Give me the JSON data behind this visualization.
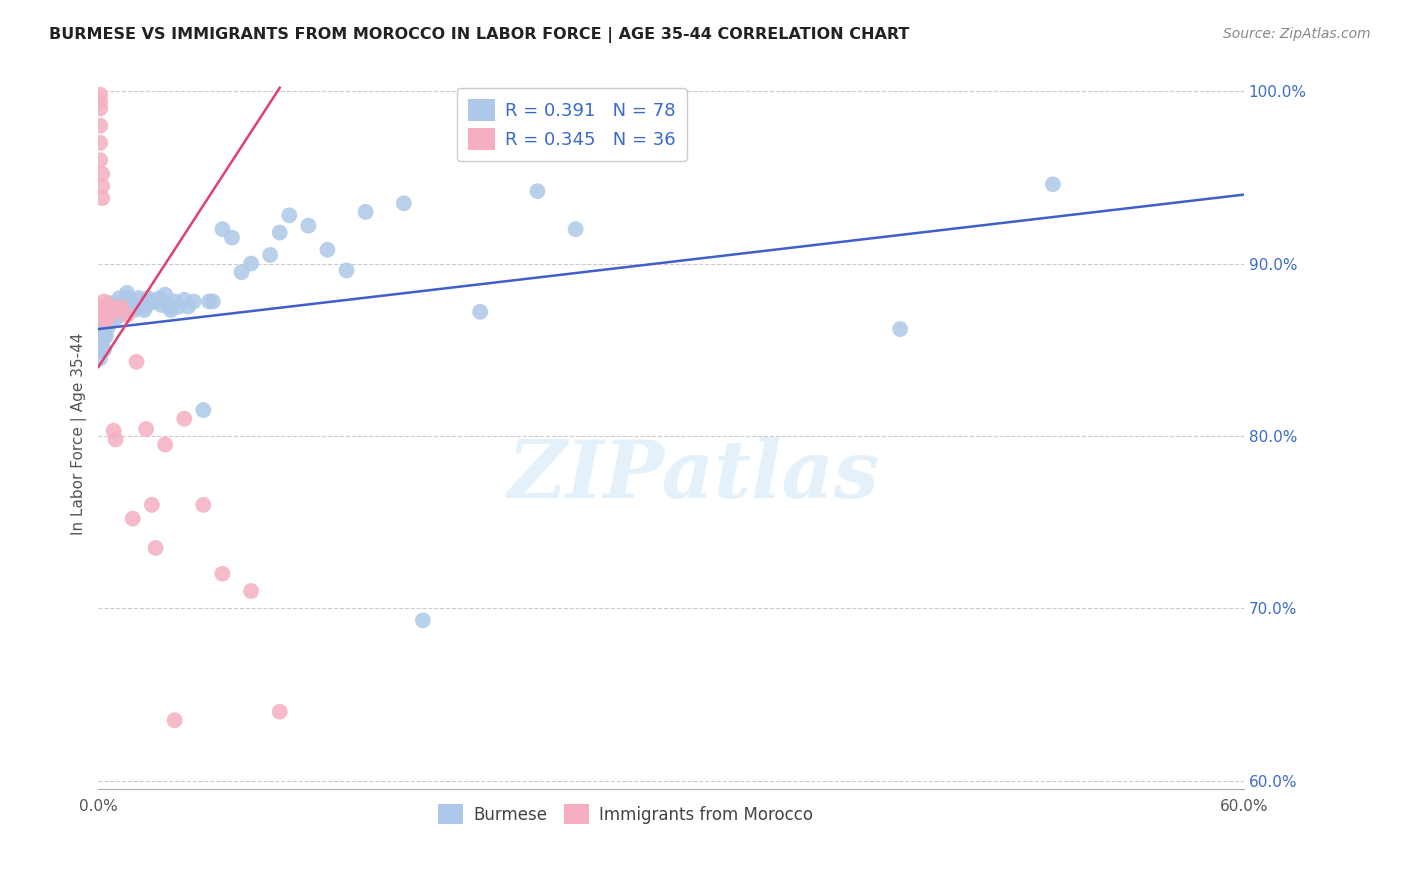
{
  "title": "BURMESE VS IMMIGRANTS FROM MOROCCO IN LABOR FORCE | AGE 35-44 CORRELATION CHART",
  "source": "Source: ZipAtlas.com",
  "ylabel": "In Labor Force | Age 35-44",
  "x_min": 0.0,
  "x_max": 0.6,
  "y_min": 0.595,
  "y_max": 1.008,
  "legend1_r": "0.391",
  "legend1_n": "78",
  "legend2_r": "0.345",
  "legend2_n": "36",
  "blue_color": "#adc8e8",
  "pink_color": "#f5afc0",
  "blue_line_color": "#4060c8",
  "pink_line_color": "#e04070",
  "legend_r_color": "#3b6bc8",
  "background_color": "#ffffff",
  "watermark": "ZIPatlas",
  "burmese_x": [
    0.001,
    0.001,
    0.001,
    0.001,
    0.002,
    0.002,
    0.002,
    0.002,
    0.002,
    0.003,
    0.003,
    0.003,
    0.003,
    0.004,
    0.004,
    0.004,
    0.005,
    0.005,
    0.005,
    0.006,
    0.006,
    0.007,
    0.007,
    0.008,
    0.008,
    0.009,
    0.01,
    0.01,
    0.011,
    0.012,
    0.013,
    0.014,
    0.015,
    0.016,
    0.017,
    0.018,
    0.019,
    0.02,
    0.021,
    0.022,
    0.023,
    0.024,
    0.025,
    0.026,
    0.027,
    0.028,
    0.03,
    0.032,
    0.033,
    0.035,
    0.037,
    0.038,
    0.04,
    0.042,
    0.045,
    0.047,
    0.05,
    0.055,
    0.058,
    0.06,
    0.065,
    0.07,
    0.075,
    0.08,
    0.09,
    0.095,
    0.1,
    0.11,
    0.12,
    0.13,
    0.14,
    0.16,
    0.17,
    0.2,
    0.23,
    0.25,
    0.42,
    0.5
  ],
  "burmese_y": [
    0.862,
    0.855,
    0.85,
    0.845,
    0.87,
    0.865,
    0.86,
    0.855,
    0.85,
    0.868,
    0.863,
    0.858,
    0.85,
    0.87,
    0.865,
    0.858,
    0.875,
    0.87,
    0.863,
    0.877,
    0.87,
    0.874,
    0.868,
    0.876,
    0.87,
    0.868,
    0.876,
    0.87,
    0.88,
    0.876,
    0.872,
    0.877,
    0.883,
    0.88,
    0.878,
    0.876,
    0.873,
    0.875,
    0.88,
    0.876,
    0.875,
    0.873,
    0.878,
    0.88,
    0.877,
    0.878,
    0.878,
    0.88,
    0.876,
    0.882,
    0.875,
    0.873,
    0.878,
    0.875,
    0.879,
    0.875,
    0.878,
    0.815,
    0.878,
    0.878,
    0.92,
    0.915,
    0.895,
    0.9,
    0.905,
    0.918,
    0.928,
    0.922,
    0.908,
    0.896,
    0.93,
    0.935,
    0.693,
    0.872,
    0.942,
    0.92,
    0.862,
    0.946
  ],
  "morocco_x": [
    0.001,
    0.001,
    0.001,
    0.001,
    0.001,
    0.001,
    0.002,
    0.002,
    0.002,
    0.002,
    0.003,
    0.003,
    0.003,
    0.004,
    0.004,
    0.005,
    0.005,
    0.006,
    0.007,
    0.008,
    0.009,
    0.01,
    0.012,
    0.015,
    0.018,
    0.02,
    0.025,
    0.028,
    0.03,
    0.035,
    0.04,
    0.045,
    0.055,
    0.065,
    0.08,
    0.095
  ],
  "morocco_y": [
    0.998,
    0.994,
    0.99,
    0.98,
    0.97,
    0.96,
    0.952,
    0.945,
    0.938,
    0.875,
    0.878,
    0.873,
    0.868,
    0.873,
    0.867,
    0.876,
    0.87,
    0.87,
    0.873,
    0.803,
    0.798,
    0.873,
    0.875,
    0.87,
    0.752,
    0.843,
    0.804,
    0.76,
    0.735,
    0.795,
    0.635,
    0.81,
    0.76,
    0.72,
    0.71,
    0.64
  ],
  "blue_line_x0": 0.0,
  "blue_line_y0": 0.862,
  "blue_line_x1": 0.6,
  "blue_line_y1": 0.94,
  "pink_line_x0": 0.0,
  "pink_line_y0": 0.84,
  "pink_line_x1": 0.095,
  "pink_line_y1": 1.002
}
